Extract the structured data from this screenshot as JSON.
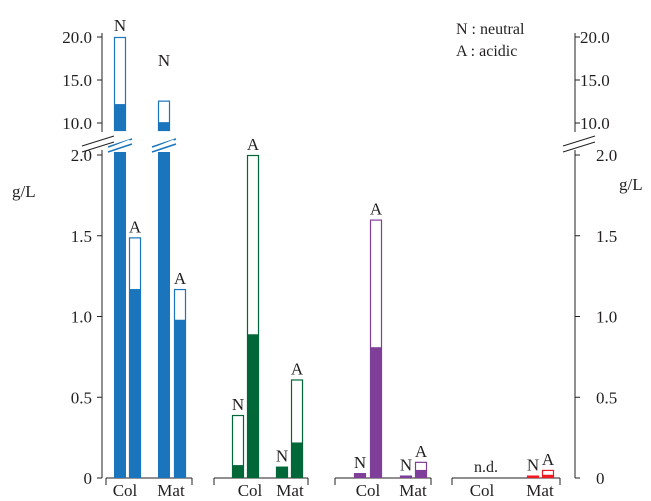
{
  "chart_data": {
    "type": "bar",
    "ylabel": "g/L",
    "legend": {
      "placement": "top-right",
      "entries": [
        "N : neutral",
        "A : acidic"
      ]
    },
    "axis_breaks": {
      "lower_range": [
        0,
        2.0
      ],
      "upper_range": [
        9.4,
        20.0
      ],
      "lower_ticks": [
        "0",
        "0.5",
        "1.0",
        "1.5",
        "2.0"
      ],
      "upper_ticks": [
        "10.0",
        "15.0",
        "20.0"
      ]
    },
    "groups": [
      {
        "color": "#1b75bc",
        "bars": [
          {
            "category": "Col",
            "type": "N",
            "label": "N",
            "total": 20.0,
            "filled": 12.2
          },
          {
            "category": "Col",
            "type": "A",
            "label": "A",
            "total": 1.49,
            "filled": 1.17
          },
          {
            "category": "Mat",
            "type": "N",
            "label": "N",
            "total": 12.6,
            "filled": 10.1
          },
          {
            "category": "Mat",
            "type": "A",
            "label": "A",
            "total": 1.17,
            "filled": 0.98
          }
        ]
      },
      {
        "color": "#006838",
        "bars": [
          {
            "category": "Col",
            "type": "N",
            "label": "N",
            "total": 0.39,
            "filled": 0.08
          },
          {
            "category": "Col",
            "type": "A",
            "label": "A",
            "total": 2.0,
            "filled": 0.89
          },
          {
            "category": "Mat",
            "type": "N",
            "label": "N",
            "total": 0.07,
            "filled": 0.07
          },
          {
            "category": "Mat",
            "type": "A",
            "label": "A",
            "total": 0.61,
            "filled": 0.22
          }
        ]
      },
      {
        "color": "#7f3f98",
        "bars": [
          {
            "category": "Col",
            "type": "N",
            "label": "N",
            "total": 0.03,
            "filled": 0.03
          },
          {
            "category": "Col",
            "type": "A",
            "label": "A",
            "total": 1.6,
            "filled": 0.81
          },
          {
            "category": "Mat",
            "type": "N",
            "label": "N",
            "total": 0.015,
            "filled": 0.015
          },
          {
            "category": "Mat",
            "type": "A",
            "label": "A",
            "total": 0.1,
            "filled": 0.05
          }
        ]
      },
      {
        "color": "#ed1c24",
        "bars": [
          {
            "category": "Col",
            "type": "N",
            "label": "",
            "total": 0,
            "filled": 0
          },
          {
            "category": "Col",
            "type": "A",
            "label": "",
            "total": 0,
            "filled": 0
          },
          {
            "category": "Mat",
            "type": "N",
            "label": "N",
            "total": 0.015,
            "filled": 0.015
          },
          {
            "category": "Mat",
            "type": "A",
            "label": "A",
            "total": 0.05,
            "filled": 0.02
          }
        ],
        "annotation": "n.d."
      }
    ],
    "categories": [
      "Col",
      "Mat",
      "Col",
      "Mat",
      "Col",
      "Mat",
      "Col",
      "Mat"
    ]
  }
}
